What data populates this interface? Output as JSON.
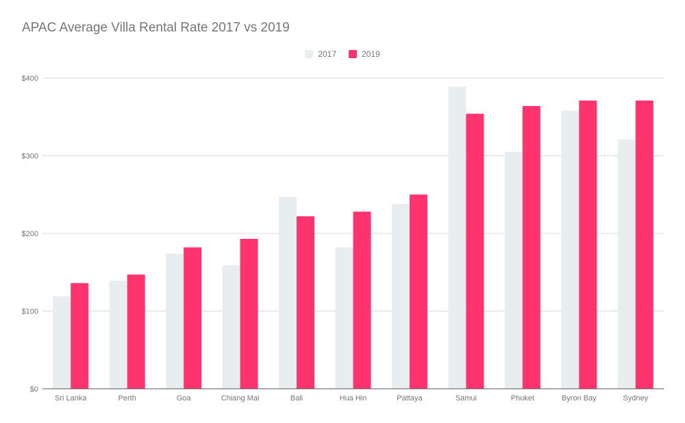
{
  "chart_data": {
    "type": "bar",
    "title": "APAC Average Villa Rental Rate 2017 vs 2019",
    "xlabel": "",
    "ylabel": "",
    "categories": [
      "Sri Lanka",
      "Perth",
      "Goa",
      "Chiang Mai",
      "Bali",
      "Hua Hin",
      "Pattaya",
      "Samui",
      "Phuket",
      "Byron Bay",
      "Sydney"
    ],
    "series": [
      {
        "name": "2017",
        "color": "#e8edf0",
        "values": [
          119,
          139,
          174,
          159,
          247,
          182,
          238,
          389,
          305,
          358,
          321
        ]
      },
      {
        "name": "2019",
        "color": "#ff336e",
        "values": [
          136,
          147,
          182,
          193,
          222,
          228,
          250,
          354,
          364,
          371,
          371
        ]
      }
    ],
    "ylim": [
      0,
      400
    ],
    "yticks": [
      0,
      100,
      200,
      300,
      400
    ],
    "ytick_labels": [
      "$0",
      "$100",
      "$200",
      "$300",
      "$400"
    ],
    "grid": true,
    "legend_position": "top-center"
  }
}
